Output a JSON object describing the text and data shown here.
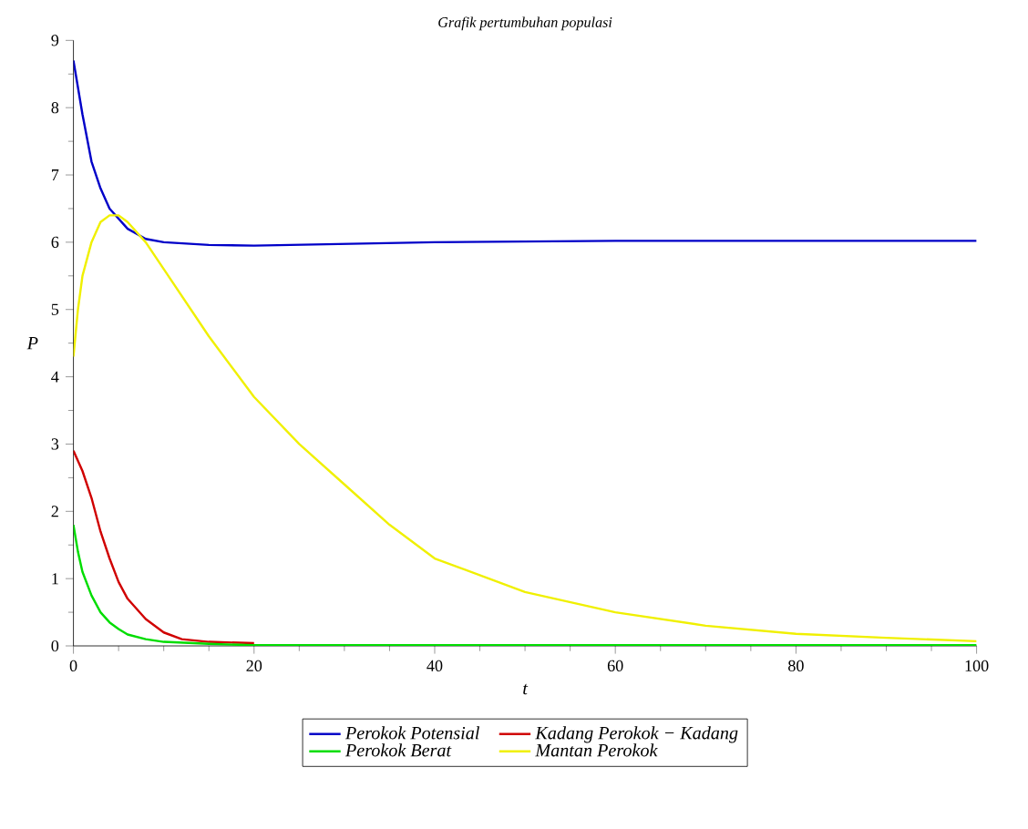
{
  "chart_data": {
    "type": "line",
    "title": "Grafik pertumbuhan populasi",
    "xlabel": "t",
    "ylabel": "P",
    "xlim": [
      0,
      100
    ],
    "ylim": [
      0,
      9
    ],
    "xticks": [
      0,
      20,
      40,
      60,
      80,
      100
    ],
    "yticks": [
      0,
      1,
      2,
      3,
      4,
      5,
      6,
      7,
      8,
      9
    ],
    "legend": "bottom",
    "grid": false,
    "marker": "none",
    "line_style": "solid",
    "series": [
      {
        "name": "Perokok Potensial",
        "color": "#0000c8",
        "x": [
          0,
          1,
          2,
          3,
          4,
          5,
          6,
          8,
          10,
          15,
          20,
          40,
          60,
          100
        ],
        "values": [
          8.7,
          7.9,
          7.2,
          6.8,
          6.5,
          6.35,
          6.2,
          6.05,
          6.0,
          5.96,
          5.95,
          6.0,
          6.02,
          6.02
        ]
      },
      {
        "name": "Kadang Perokok − Kadang",
        "color": "#d00000",
        "x": [
          0,
          1,
          2,
          3,
          4,
          5,
          6,
          8,
          10,
          12,
          15,
          20
        ],
        "values": [
          2.9,
          2.6,
          2.2,
          1.7,
          1.3,
          0.95,
          0.7,
          0.4,
          0.2,
          0.1,
          0.06,
          0.04
        ]
      },
      {
        "name": "Perokok Berat",
        "color": "#00dd00",
        "x": [
          0,
          0.5,
          1,
          2,
          3,
          4,
          5,
          6,
          8,
          10,
          15,
          20,
          100
        ],
        "values": [
          1.8,
          1.4,
          1.1,
          0.75,
          0.5,
          0.35,
          0.25,
          0.17,
          0.1,
          0.06,
          0.03,
          0.01,
          0.01
        ]
      },
      {
        "name": "Mantan Perokok",
        "color": "#f0f000",
        "x": [
          0,
          0.5,
          1,
          2,
          3,
          4,
          5,
          6,
          8,
          10,
          15,
          20,
          25,
          30,
          35,
          40,
          50,
          60,
          70,
          80,
          90,
          100
        ],
        "values": [
          4.3,
          5.0,
          5.5,
          6.0,
          6.3,
          6.4,
          6.4,
          6.3,
          6.0,
          5.6,
          4.6,
          3.7,
          3.0,
          2.4,
          1.8,
          1.3,
          0.8,
          0.5,
          0.3,
          0.18,
          0.12,
          0.07
        ]
      }
    ]
  }
}
